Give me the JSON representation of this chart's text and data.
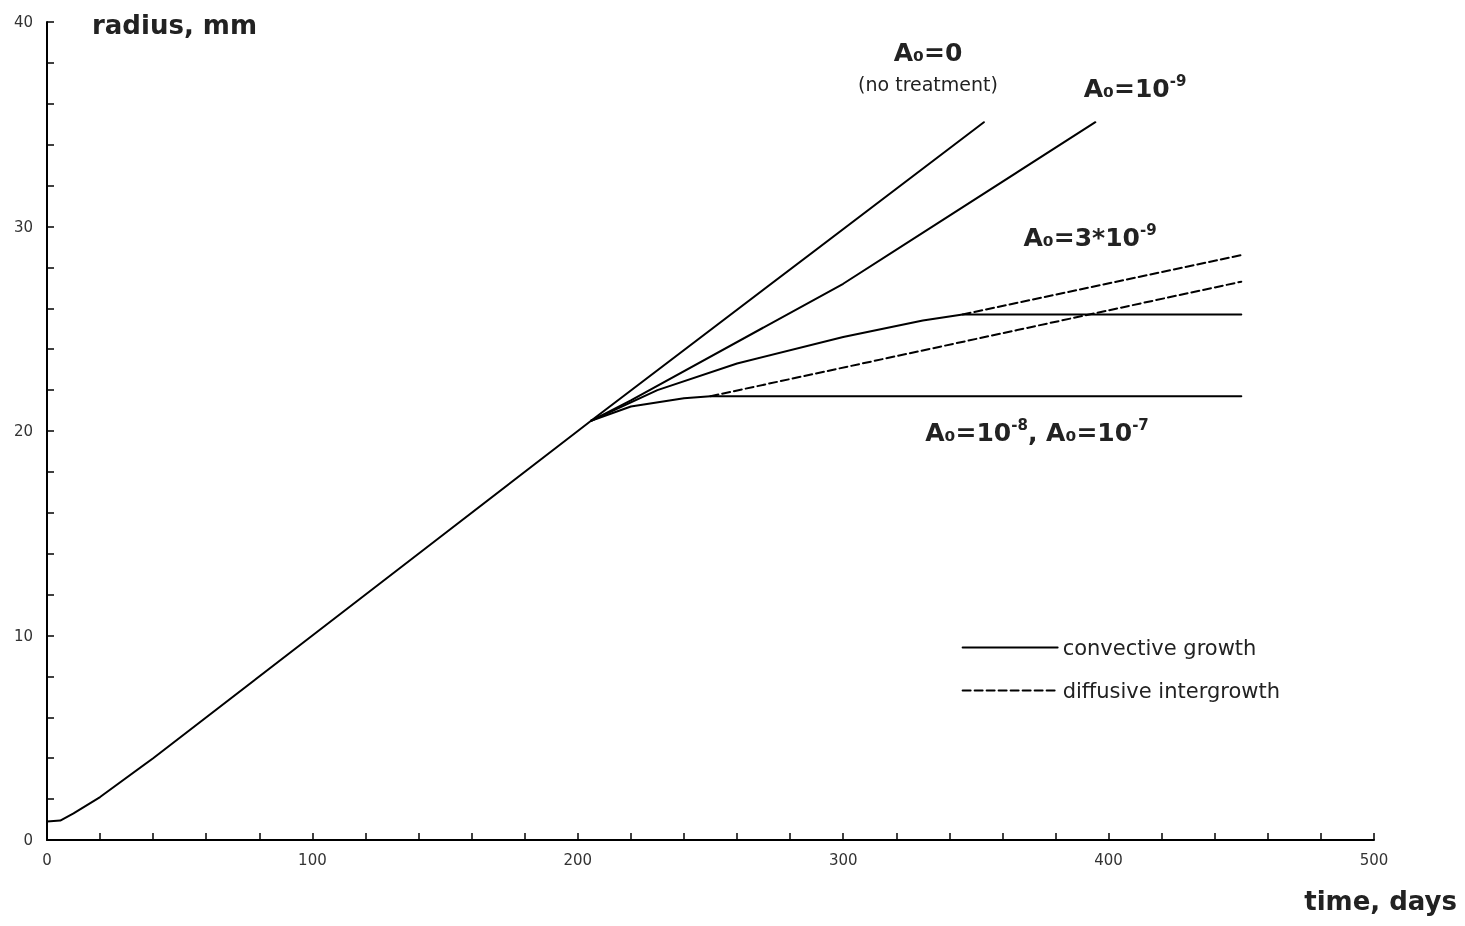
{
  "chart_data": {
    "type": "line",
    "xlabel": "time, days",
    "ylabel": "radius, mm",
    "xlim": [
      0,
      500
    ],
    "ylim": [
      0,
      40
    ],
    "xticks": [
      0,
      {
        "value": 20,
        "label": null
      },
      {
        "value": 40,
        "label": null
      },
      {
        "value": 60,
        "label": null
      },
      {
        "value": 80,
        "label": null
      },
      100,
      {
        "value": 120,
        "label": null
      },
      {
        "value": 140,
        "label": null
      },
      {
        "value": 160,
        "label": null
      },
      {
        "value": 180,
        "label": null
      },
      200,
      {
        "value": 220,
        "label": null
      },
      {
        "value": 240,
        "label": null
      },
      {
        "value": 260,
        "label": null
      },
      {
        "value": 280,
        "label": null
      },
      300,
      {
        "value": 320,
        "label": null
      },
      {
        "value": 340,
        "label": null
      },
      {
        "value": 360,
        "label": null
      },
      {
        "value": 380,
        "label": null
      },
      400,
      {
        "value": 420,
        "label": null
      },
      {
        "value": 440,
        "label": null
      },
      {
        "value": 460,
        "label": null
      },
      {
        "value": 480,
        "label": null
      },
      500
    ],
    "yticks": [
      0,
      {
        "value": 2,
        "label": null
      },
      {
        "value": 4,
        "label": null
      },
      {
        "value": 6,
        "label": null
      },
      {
        "value": 8,
        "label": null
      },
      10,
      {
        "value": 12,
        "label": null
      },
      {
        "value": 14,
        "label": null
      },
      {
        "value": 16,
        "label": null
      },
      {
        "value": 18,
        "label": null
      },
      20,
      {
        "value": 22,
        "label": null
      },
      {
        "value": 24,
        "label": null
      },
      {
        "value": 26,
        "label": null
      },
      {
        "value": 28,
        "label": null
      },
      30,
      {
        "value": 32,
        "label": null
      },
      {
        "value": 34,
        "label": null
      },
      {
        "value": 36,
        "label": null
      },
      {
        "value": 38,
        "label": null
      },
      40
    ],
    "grid": false,
    "legend": "bottom right",
    "marker": "none",
    "series": [
      {
        "name": "convective growth",
        "color": "#000000",
        "line_style": "solid",
        "x": [
          0,
          5,
          10,
          20,
          40,
          100,
          150,
          200,
          205,
          353
        ],
        "values": [
          0.9,
          0.95,
          1.3,
          2.1,
          4.0,
          10,
          15,
          20,
          20.5,
          35.1
        ]
      },
      {
        "color": "#000000",
        "line_style": "solid",
        "x": [
          205,
          220,
          300,
          395
        ],
        "values": [
          20.5,
          21.5,
          27.2,
          35.1
        ]
      },
      {
        "color": "#000000",
        "line_style": "solid",
        "x": [
          205,
          230,
          260,
          300,
          330,
          345,
          450
        ],
        "values": [
          20.5,
          22.0,
          23.3,
          24.6,
          25.4,
          25.7,
          25.7
        ]
      },
      {
        "color": "#000000",
        "line_style": "solid",
        "x": [
          205,
          220,
          240,
          250,
          450
        ],
        "values": [
          20.5,
          21.2,
          21.6,
          21.7,
          21.7
        ]
      },
      {
        "name": "diffusive intergrowth",
        "color": "#000000",
        "line_style": "dashed",
        "x": [
          345,
          450
        ],
        "values": [
          25.7,
          28.6
        ]
      },
      {
        "color": "#000000",
        "line_style": "dashed",
        "x": [
          250,
          450
        ],
        "values": [
          21.7,
          27.3
        ]
      }
    ],
    "annotations": [
      "A₀=0",
      "(no treatment)",
      "A₀=10$^{-9}$",
      "A₀=3*10$^{-9}$",
      "A₀=10$^{-8}$, A₀=10$^{-7}$"
    ]
  }
}
